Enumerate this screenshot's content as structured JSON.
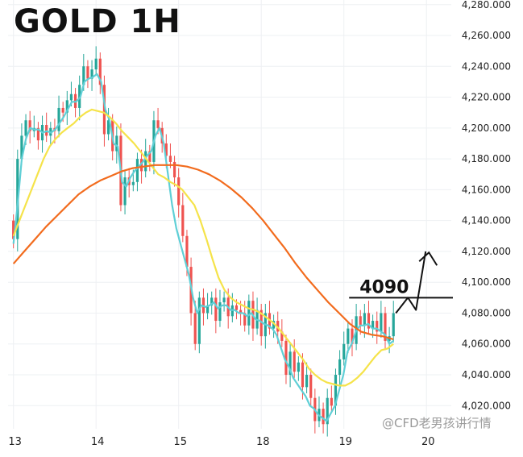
{
  "chart_data": {
    "type": "candlestick",
    "title": "GOLD 1H",
    "xlabel": "",
    "ylabel": "",
    "ylim": [
      4005,
      4283
    ],
    "y_ticks": [
      "4,280.000",
      "4,260.000",
      "4,240.000",
      "4,220.000",
      "4,200.000",
      "4,180.000",
      "4,160.000",
      "4,140.000",
      "4,120.000",
      "4,100.000",
      "4,080.000",
      "4,060.000",
      "4,040.000",
      "4,020.000"
    ],
    "y_tick_values": [
      4280,
      4260,
      4240,
      4220,
      4200,
      4180,
      4160,
      4140,
      4120,
      4100,
      4080,
      4060,
      4040,
      4020
    ],
    "x_ticks": [
      {
        "label": "13",
        "x": 0
      },
      {
        "label": "14",
        "x": 20
      },
      {
        "label": "15",
        "x": 40
      },
      {
        "label": "18",
        "x": 60
      },
      {
        "label": "19",
        "x": 80
      },
      {
        "label": "20",
        "x": 100
      }
    ],
    "x_range": [
      -1.3,
      106
    ],
    "candles": {
      "up_color": "#26a69a",
      "down_color": "#ef5350",
      "close": [
        4128,
        4180,
        4195,
        4205,
        4198,
        4200,
        4192,
        4202,
        4195,
        4200,
        4198,
        4213,
        4210,
        4218,
        4222,
        4213,
        4228,
        4240,
        4232,
        4238,
        4245,
        4228,
        4196,
        4205,
        4185,
        4195,
        4150,
        4168,
        4163,
        4165,
        4180,
        4172,
        4185,
        4178,
        4205,
        4200,
        4190,
        4182,
        4178,
        4168,
        4150,
        4130,
        4110,
        4080,
        4060,
        4090,
        4080,
        4085,
        4090,
        4075,
        4087,
        4090,
        4078,
        4085,
        4082,
        4080,
        4072,
        4088,
        4070,
        4082,
        4065,
        4080,
        4070,
        4075,
        4068,
        4062,
        4040,
        4055,
        4042,
        4048,
        4032,
        4040,
        4025,
        4010,
        4018,
        4008,
        4025,
        4020,
        4040,
        4050,
        4060,
        4070,
        4060,
        4078,
        4072,
        4080,
        4070,
        4075,
        4068,
        4080,
        4062,
        4065,
        4080
      ],
      "open": [
        4140,
        4128,
        4180,
        4195,
        4205,
        4198,
        4200,
        4192,
        4202,
        4195,
        4200,
        4198,
        4213,
        4210,
        4218,
        4222,
        4213,
        4228,
        4240,
        4232,
        4238,
        4245,
        4228,
        4196,
        4205,
        4185,
        4195,
        4150,
        4168,
        4163,
        4165,
        4180,
        4172,
        4185,
        4178,
        4205,
        4200,
        4190,
        4182,
        4178,
        4168,
        4150,
        4130,
        4110,
        4080,
        4060,
        4090,
        4080,
        4085,
        4090,
        4075,
        4087,
        4090,
        4078,
        4085,
        4082,
        4080,
        4072,
        4088,
        4070,
        4082,
        4065,
        4080,
        4070,
        4075,
        4068,
        4062,
        4040,
        4055,
        4042,
        4048,
        4032,
        4040,
        4025,
        4010,
        4018,
        4008,
        4025,
        4020,
        4040,
        4050,
        4060,
        4070,
        4060,
        4078,
        4072,
        4080,
        4070,
        4075,
        4068,
        4080,
        4062,
        4065
      ]
    },
    "series": [
      {
        "color": "#5fcfd6",
        "values": [
          4125,
          4150,
          4180,
          4193,
          4200,
          4199,
          4199,
          4197,
          4198,
          4197,
          4199,
          4203,
          4207,
          4212,
          4217,
          4217,
          4220,
          4230,
          4232,
          4233,
          4235,
          4230,
          4212,
          4205,
          4190,
          4188,
          4165,
          4162,
          4168,
          4172,
          4175,
          4178,
          4182,
          4185,
          4195,
          4200,
          4190,
          4170,
          4150,
          4135,
          4125,
          4115,
          4105,
          4090,
          4080,
          4085,
          4084,
          4085,
          4087,
          4083,
          4085,
          4085,
          4082,
          4082,
          4080,
          4080,
          4078,
          4080,
          4076,
          4075,
          4073,
          4072,
          4070,
          4066,
          4058,
          4050,
          4045,
          4038,
          4034,
          4030,
          4026,
          4020,
          4018,
          4014,
          4012,
          4010,
          4015,
          4020,
          4030,
          4040,
          4055,
          4060,
          4068,
          4072,
          4072,
          4073,
          4070,
          4070,
          4068,
          4066,
          4060,
          4062
        ]
      },
      {
        "color": "#f5e34a",
        "values": [
          4130,
          4140,
          4150,
          4160,
          4170,
          4180,
          4188,
          4193,
          4197,
          4200,
          4203,
          4207,
          4210,
          4212,
          4211,
          4210,
          4207,
          4203,
          4198,
          4194,
          4190,
          4185,
          4180,
          4175,
          4170,
          4168,
          4165,
          4163,
          4160,
          4155,
          4150,
          4140,
          4128,
          4115,
          4103,
          4095,
          4090,
          4087,
          4085,
          4083,
          4082,
          4080,
          4077,
          4074,
          4070,
          4065,
          4060,
          4055,
          4050,
          4044,
          4040,
          4037,
          4035,
          4034,
          4033,
          4033,
          4035,
          4038,
          4042,
          4047,
          4052,
          4056,
          4057,
          4060
        ]
      },
      {
        "color": "#f26b1d",
        "values": [
          4112,
          4120,
          4128,
          4136,
          4143,
          4150,
          4157,
          4162,
          4166,
          4169,
          4172,
          4174,
          4175,
          4176,
          4176,
          4176,
          4175,
          4173,
          4170,
          4166,
          4161,
          4155,
          4148,
          4140,
          4131,
          4122,
          4112,
          4103,
          4095,
          4087,
          4080,
          4073,
          4068,
          4066,
          4065,
          4063
        ]
      }
    ],
    "annotations": {
      "level_label": "4090",
      "level_value": 4090
    },
    "grid": true,
    "legend": "none"
  },
  "watermark": "@CFD老男孩讲行情"
}
